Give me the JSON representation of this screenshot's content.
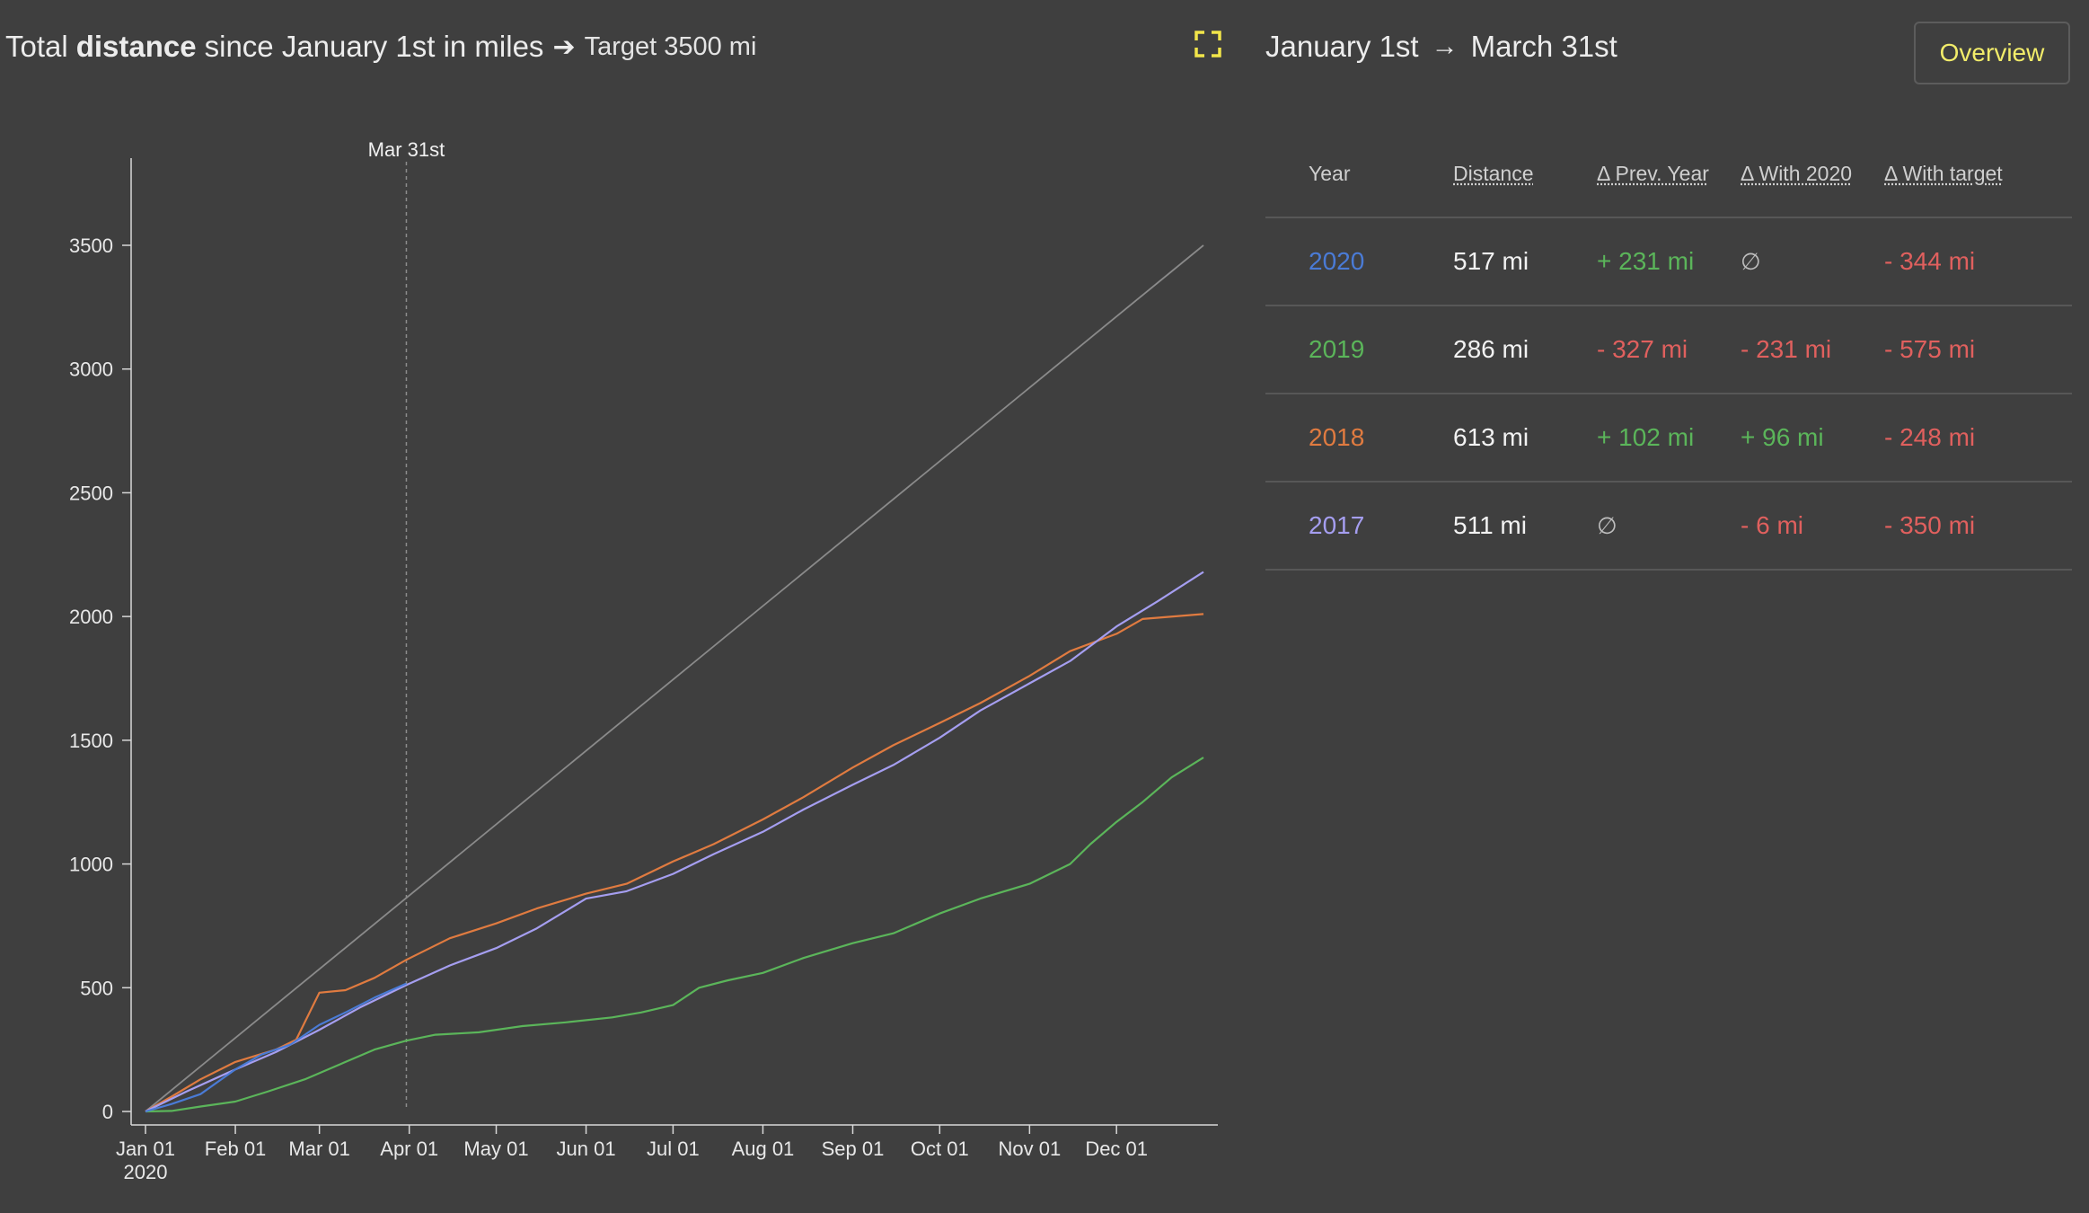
{
  "header": {
    "title_pre": "Total",
    "title_bold": "distance",
    "title_post": "since January 1st in miles",
    "arrow_glyph": "➔",
    "target_text": "Target 3500 mi",
    "expand_icon": "expand-icon",
    "expand_color": "#f2e54a"
  },
  "range": {
    "from": "January 1st",
    "arrow": "→",
    "to": "March 31st"
  },
  "overview_button": {
    "label": "Overview",
    "color": "#f2ec6a"
  },
  "table": {
    "headers": [
      "Year",
      "Distance",
      "Δ Prev. Year",
      "Δ With 2020",
      "Δ With target"
    ],
    "rows": [
      {
        "year": "2020",
        "year_color": "#4a7bd6",
        "distance": "517 mi",
        "d_prev": "+ 231 mi",
        "d_prev_kind": "pos",
        "d_2020": "∅",
        "d_2020_kind": "none",
        "d_target": "- 344 mi",
        "d_target_kind": "neg"
      },
      {
        "year": "2019",
        "year_color": "#5bb55a",
        "distance": "286 mi",
        "d_prev": "- 327 mi",
        "d_prev_kind": "neg",
        "d_2020": "- 231 mi",
        "d_2020_kind": "neg",
        "d_target": "- 575 mi",
        "d_target_kind": "neg"
      },
      {
        "year": "2018",
        "year_color": "#e07b40",
        "distance": "613 mi",
        "d_prev": "+ 102 mi",
        "d_prev_kind": "pos",
        "d_2020": "+ 96 mi",
        "d_2020_kind": "pos",
        "d_target": "- 248 mi",
        "d_target_kind": "neg"
      },
      {
        "year": "2017",
        "year_color": "#a59ef0",
        "distance": "511 mi",
        "d_prev": "∅",
        "d_prev_kind": "none",
        "d_2020": "- 6 mi",
        "d_2020_kind": "neg",
        "d_target": "- 350 mi",
        "d_target_kind": "neg"
      }
    ]
  },
  "chart_data": {
    "type": "line",
    "title": "Total distance since January 1st in miles ➔ Target 3500 mi",
    "xlabel": "",
    "ylabel": "",
    "x_range": [
      "2020-01-01",
      "2020-12-31"
    ],
    "ylim": [
      0,
      3800
    ],
    "y_ticks": [
      0,
      500,
      1000,
      1500,
      2000,
      2500,
      3000,
      3500
    ],
    "x_ticks": [
      {
        "date": "2020-01-01",
        "label": "Jan 01",
        "sublabel": "2020"
      },
      {
        "date": "2020-02-01",
        "label": "Feb 01"
      },
      {
        "date": "2020-03-01",
        "label": "Mar 01"
      },
      {
        "date": "2020-04-01",
        "label": "Apr 01"
      },
      {
        "date": "2020-05-01",
        "label": "May 01"
      },
      {
        "date": "2020-06-01",
        "label": "Jun 01"
      },
      {
        "date": "2020-07-01",
        "label": "Jul 01"
      },
      {
        "date": "2020-08-01",
        "label": "Aug 01"
      },
      {
        "date": "2020-09-01",
        "label": "Sep 01"
      },
      {
        "date": "2020-10-01",
        "label": "Oct 01"
      },
      {
        "date": "2020-11-01",
        "label": "Nov 01"
      },
      {
        "date": "2020-12-01",
        "label": "Dec 01"
      }
    ],
    "marker": {
      "date": "2020-03-31",
      "label": "Mar 31st"
    },
    "grid": false,
    "legend": "none",
    "series": [
      {
        "color": "#8a8a8a",
        "points": [
          [
            "2020-01-01",
            0
          ],
          [
            "2020-12-31",
            3500
          ]
        ]
      },
      {
        "color": "#5bb55a",
        "points": [
          [
            "2020-01-01",
            0
          ],
          [
            "2020-01-10",
            2
          ],
          [
            "2020-01-20",
            20
          ],
          [
            "2020-02-01",
            40
          ],
          [
            "2020-02-12",
            80
          ],
          [
            "2020-02-25",
            130
          ],
          [
            "2020-03-10",
            200
          ],
          [
            "2020-03-20",
            250
          ],
          [
            "2020-03-31",
            286
          ],
          [
            "2020-04-10",
            310
          ],
          [
            "2020-04-25",
            320
          ],
          [
            "2020-05-10",
            345
          ],
          [
            "2020-05-25",
            360
          ],
          [
            "2020-06-10",
            380
          ],
          [
            "2020-06-20",
            400
          ],
          [
            "2020-07-01",
            430
          ],
          [
            "2020-07-10",
            500
          ],
          [
            "2020-07-20",
            530
          ],
          [
            "2020-08-01",
            560
          ],
          [
            "2020-08-15",
            620
          ],
          [
            "2020-09-01",
            680
          ],
          [
            "2020-09-15",
            720
          ],
          [
            "2020-10-01",
            800
          ],
          [
            "2020-10-15",
            860
          ],
          [
            "2020-11-01",
            920
          ],
          [
            "2020-11-15",
            1000
          ],
          [
            "2020-11-22",
            1080
          ],
          [
            "2020-12-01",
            1170
          ],
          [
            "2020-12-10",
            1250
          ],
          [
            "2020-12-20",
            1350
          ],
          [
            "2020-12-31",
            1430
          ]
        ]
      },
      {
        "color": "#e07b40",
        "points": [
          [
            "2020-01-01",
            0
          ],
          [
            "2020-01-10",
            60
          ],
          [
            "2020-01-20",
            130
          ],
          [
            "2020-02-01",
            200
          ],
          [
            "2020-02-15",
            250
          ],
          [
            "2020-02-22",
            290
          ],
          [
            "2020-03-01",
            480
          ],
          [
            "2020-03-10",
            490
          ],
          [
            "2020-03-20",
            540
          ],
          [
            "2020-03-31",
            613
          ],
          [
            "2020-04-15",
            700
          ],
          [
            "2020-05-01",
            760
          ],
          [
            "2020-05-15",
            820
          ],
          [
            "2020-06-01",
            880
          ],
          [
            "2020-06-15",
            920
          ],
          [
            "2020-07-01",
            1010
          ],
          [
            "2020-07-15",
            1080
          ],
          [
            "2020-08-01",
            1180
          ],
          [
            "2020-08-15",
            1270
          ],
          [
            "2020-09-01",
            1390
          ],
          [
            "2020-09-15",
            1480
          ],
          [
            "2020-10-01",
            1570
          ],
          [
            "2020-10-15",
            1650
          ],
          [
            "2020-11-01",
            1760
          ],
          [
            "2020-11-15",
            1860
          ],
          [
            "2020-12-01",
            1930
          ],
          [
            "2020-12-10",
            1990
          ],
          [
            "2020-12-31",
            2010
          ]
        ]
      },
      {
        "color": "#a59ef0",
        "points": [
          [
            "2020-01-01",
            0
          ],
          [
            "2020-01-15",
            80
          ],
          [
            "2020-02-01",
            170
          ],
          [
            "2020-02-15",
            240
          ],
          [
            "2020-03-01",
            330
          ],
          [
            "2020-03-15",
            420
          ],
          [
            "2020-03-31",
            511
          ],
          [
            "2020-04-15",
            590
          ],
          [
            "2020-05-01",
            660
          ],
          [
            "2020-05-15",
            740
          ],
          [
            "2020-06-01",
            860
          ],
          [
            "2020-06-15",
            890
          ],
          [
            "2020-07-01",
            960
          ],
          [
            "2020-07-15",
            1040
          ],
          [
            "2020-08-01",
            1130
          ],
          [
            "2020-08-15",
            1220
          ],
          [
            "2020-09-01",
            1320
          ],
          [
            "2020-09-15",
            1400
          ],
          [
            "2020-10-01",
            1510
          ],
          [
            "2020-10-15",
            1620
          ],
          [
            "2020-11-01",
            1730
          ],
          [
            "2020-11-15",
            1820
          ],
          [
            "2020-12-01",
            1960
          ],
          [
            "2020-12-15",
            2060
          ],
          [
            "2020-12-31",
            2180
          ]
        ]
      },
      {
        "color": "#4a7bd6",
        "points": [
          [
            "2020-01-01",
            0
          ],
          [
            "2020-01-10",
            30
          ],
          [
            "2020-01-20",
            70
          ],
          [
            "2020-02-01",
            170
          ],
          [
            "2020-02-10",
            230
          ],
          [
            "2020-02-20",
            270
          ],
          [
            "2020-03-01",
            350
          ],
          [
            "2020-03-10",
            400
          ],
          [
            "2020-03-20",
            460
          ],
          [
            "2020-03-31",
            517
          ]
        ]
      }
    ]
  }
}
